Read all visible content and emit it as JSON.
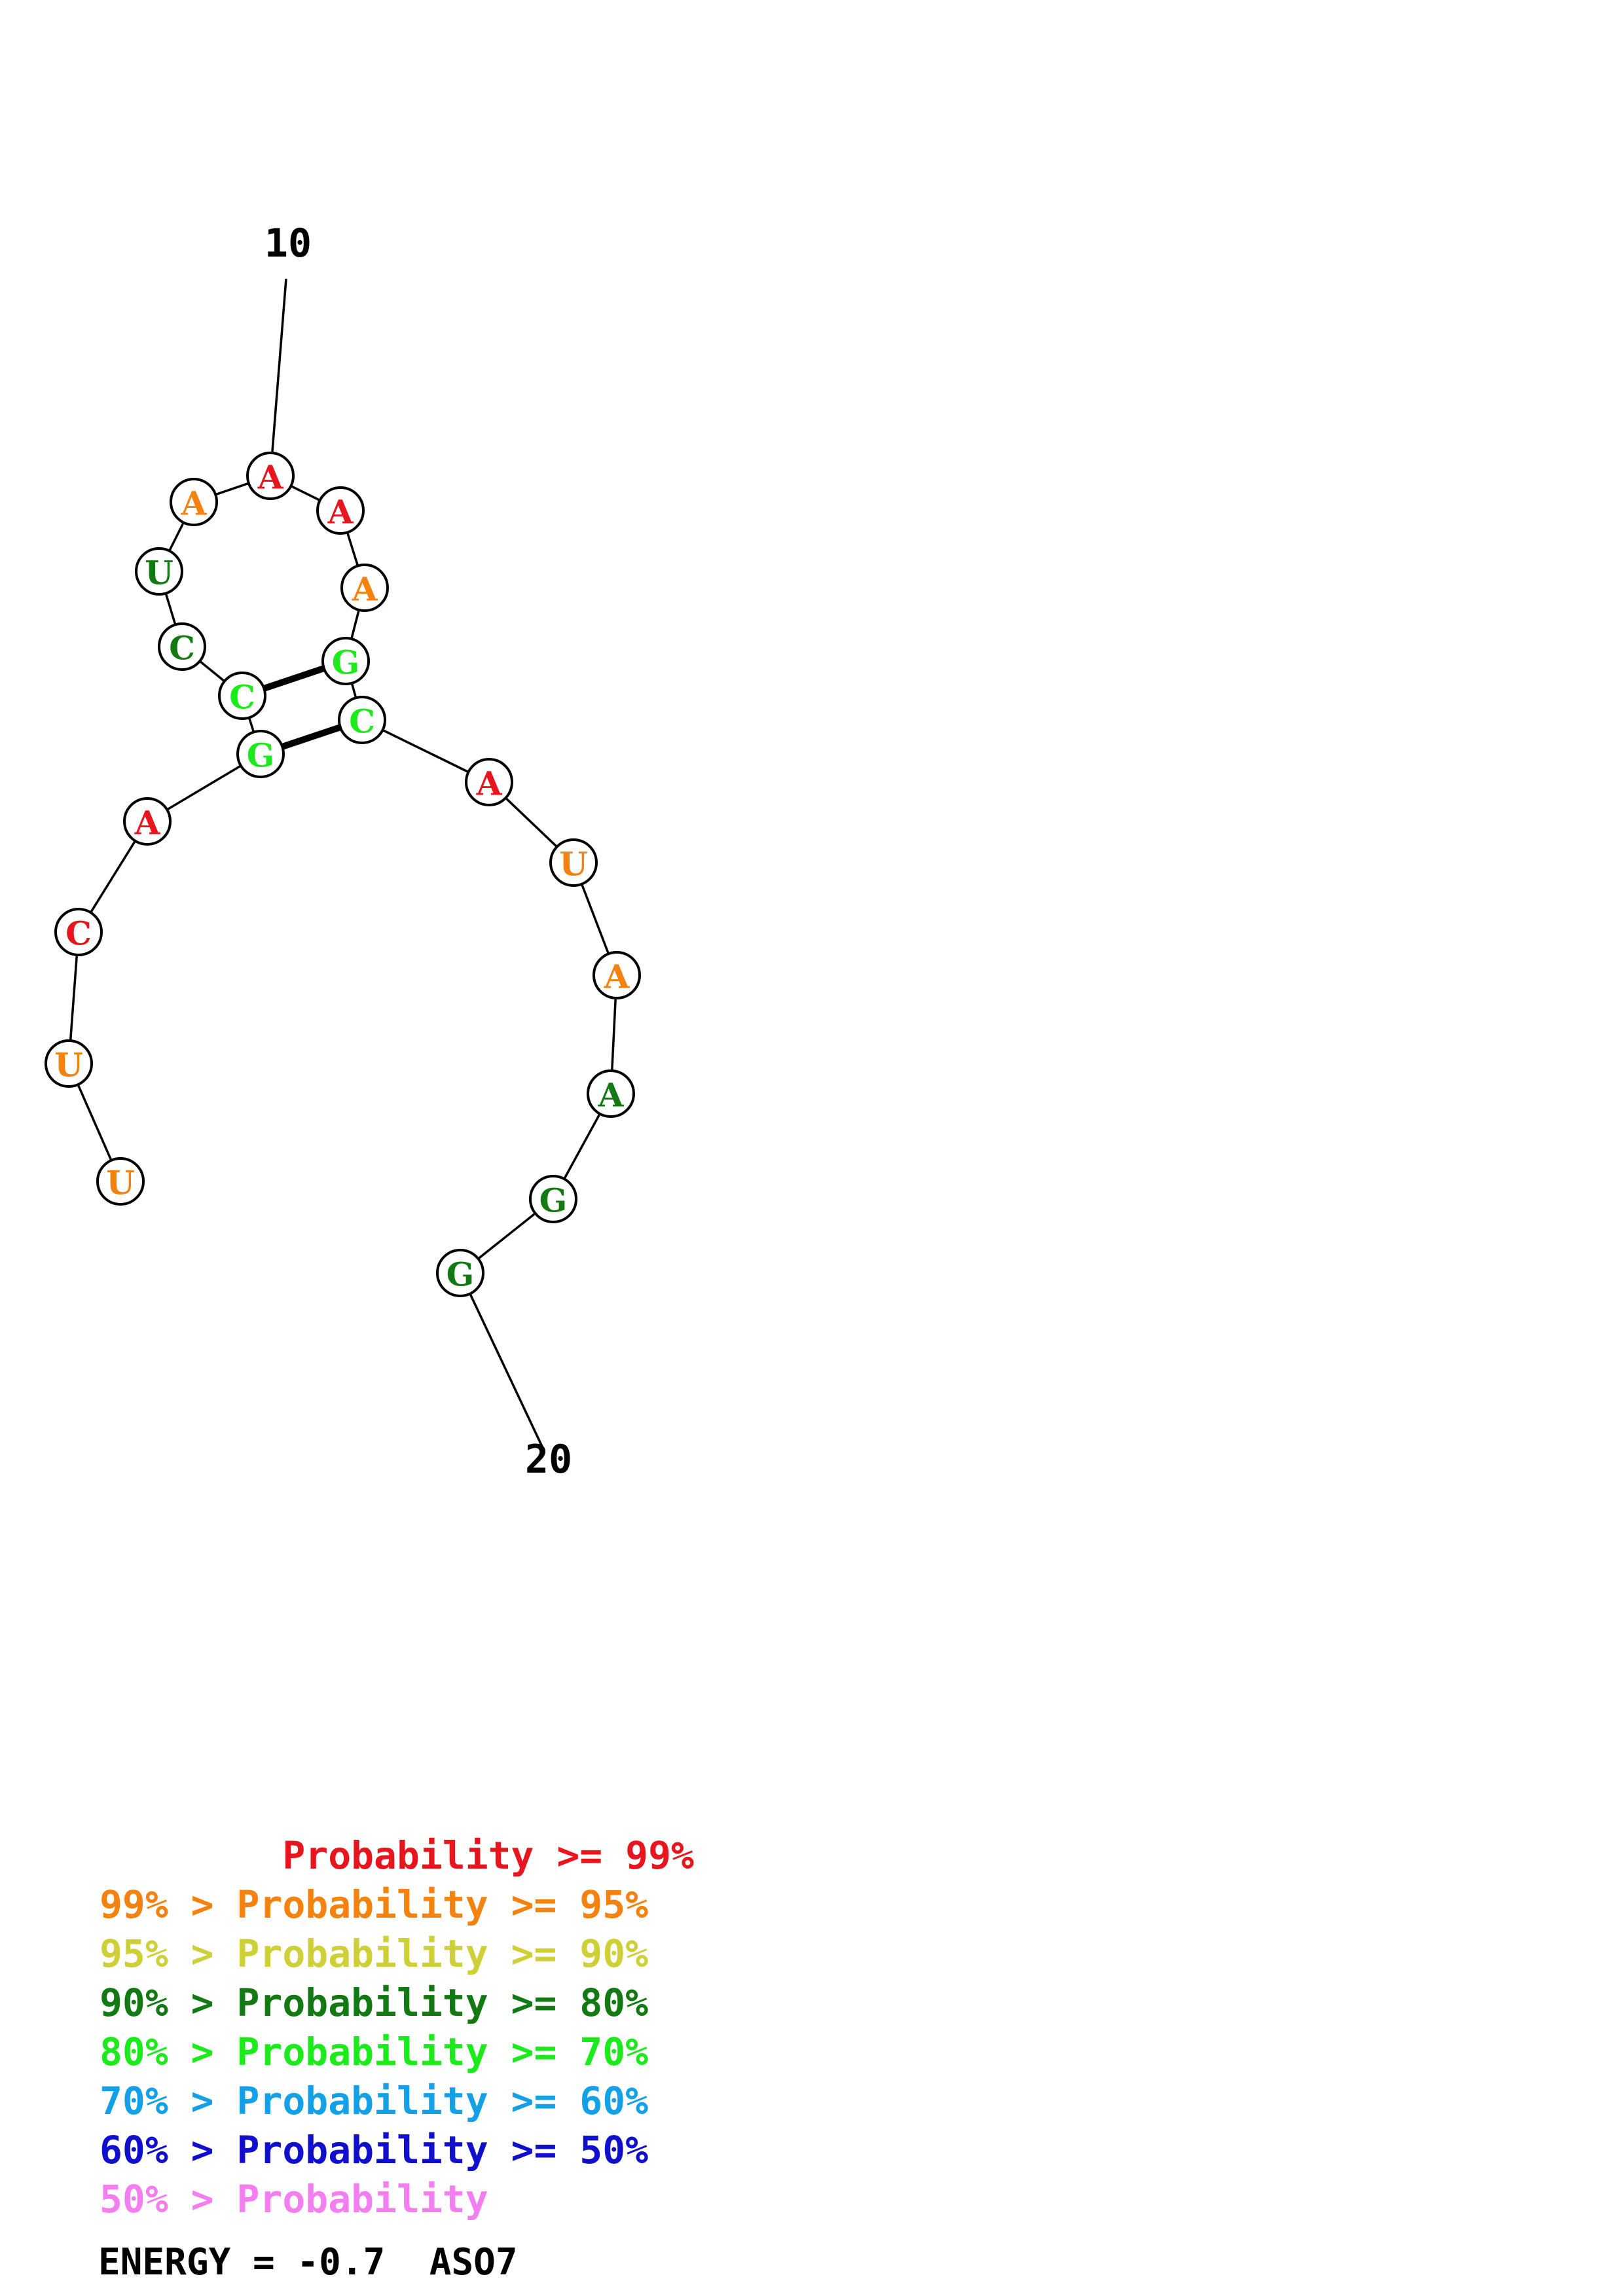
{
  "colors": {
    "red": "#e8141e",
    "orange": "#f5820f",
    "yellow": "#cfcf37",
    "darkgreen": "#137a13",
    "lightgreen": "#1bea1b",
    "lightblue": "#14a0e6",
    "blue": "#0f0fcc",
    "pink": "#f27ef0"
  },
  "nucleotides": [
    {
      "base": "U",
      "color": "orange"
    },
    {
      "base": "U",
      "color": "orange"
    },
    {
      "base": "C",
      "color": "red"
    },
    {
      "base": "A",
      "color": "red"
    },
    {
      "base": "G",
      "color": "lightgreen"
    },
    {
      "base": "C",
      "color": "lightgreen"
    },
    {
      "base": "C",
      "color": "darkgreen"
    },
    {
      "base": "U",
      "color": "darkgreen"
    },
    {
      "base": "A",
      "color": "orange"
    },
    {
      "base": "A",
      "color": "red"
    },
    {
      "base": "A",
      "color": "red"
    },
    {
      "base": "A",
      "color": "orange"
    },
    {
      "base": "G",
      "color": "lightgreen"
    },
    {
      "base": "C",
      "color": "lightgreen"
    },
    {
      "base": "A",
      "color": "red"
    },
    {
      "base": "U",
      "color": "orange"
    },
    {
      "base": "A",
      "color": "orange"
    },
    {
      "base": "A",
      "color": "darkgreen"
    },
    {
      "base": "G",
      "color": "darkgreen"
    },
    {
      "base": "G",
      "color": "darkgreen"
    }
  ],
  "pairs": [
    [
      6,
      13
    ],
    [
      5,
      14
    ]
  ],
  "position_labels": [
    {
      "text": "10",
      "nucleotide": 10
    },
    {
      "text": "20",
      "nucleotide": 20
    }
  ],
  "legend": [
    {
      "prefix": "        ",
      "label": "Probability >= 99%",
      "color": "red"
    },
    {
      "prefix": "99% > ",
      "label": "Probability >= 95%",
      "color": "orange"
    },
    {
      "prefix": "95% > ",
      "label": "Probability >= 90%",
      "color": "yellow"
    },
    {
      "prefix": "90% > ",
      "label": "Probability >= 80%",
      "color": "darkgreen"
    },
    {
      "prefix": "80% > ",
      "label": "Probability >= 70%",
      "color": "lightgreen"
    },
    {
      "prefix": "70% > ",
      "label": "Probability >= 60%",
      "color": "lightblue"
    },
    {
      "prefix": "60% > ",
      "label": "Probability >= 50%",
      "color": "blue"
    },
    {
      "prefix": "50% > ",
      "label": "Probability",
      "color": "pink"
    }
  ],
  "energy": "ENERGY = -0.7  ASO7"
}
